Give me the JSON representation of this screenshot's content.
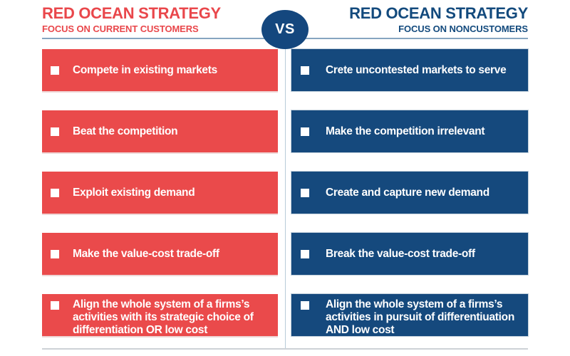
{
  "header": {
    "left": {
      "title": "RED OCEAN STRATEGY",
      "subtitle": "FOCUS ON CURRENT CUSTOMERS"
    },
    "right": {
      "title": "RED OCEAN STRATEGY",
      "subtitle": "FOCUS ON NONCUSTOMERS"
    },
    "vs_label": "VS"
  },
  "columns": {
    "left": {
      "items": [
        "Compete in existing markets",
        "Beat the competition",
        "Exploit existing demand",
        "Make the value-cost trade-off",
        "Align the whole system of a firms’s activities with its strategic choice of differentiation OR low cost"
      ]
    },
    "right": {
      "items": [
        "Crete uncontested markets to serve",
        "Make the competition irrelevant",
        "Create and capture new demand",
        "Break the value-cost trade-off",
        "Align the whole system of a firms’s activities in pursuit of differentiuation AND low cost"
      ]
    }
  },
  "colors": {
    "red_title": "#e9474b",
    "blue_title": "#134a7d",
    "red_box": "#ea4a4b",
    "blue_box": "#15497d",
    "vs_bg": "#14477e",
    "rule": "#86a5c0",
    "divider": "#b8cbd9",
    "bottom_rule": "#cdd2d6"
  }
}
